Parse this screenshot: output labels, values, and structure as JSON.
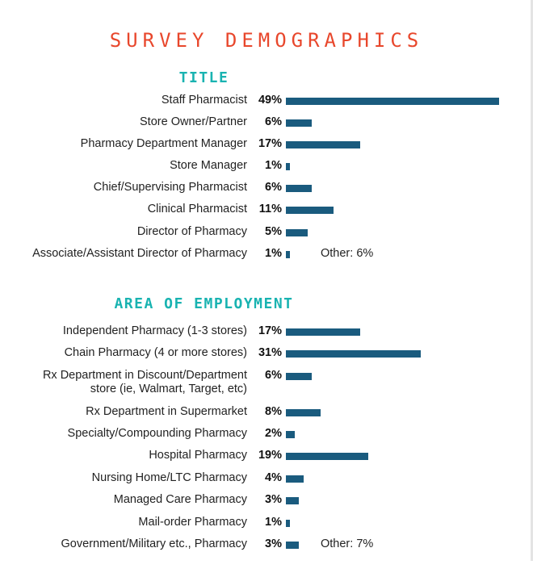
{
  "page": {
    "title": "SURVEY DEMOGRAPHICS"
  },
  "colors": {
    "title": "#e8472c",
    "section": "#19b3b1",
    "bar": "#1a5b7e"
  },
  "chart_data": [
    {
      "type": "bar",
      "orientation": "horizontal",
      "title": "TITLE",
      "categories": [
        "Staff Pharmacist",
        "Store Owner/Partner",
        "Pharmacy Department Manager",
        "Store Manager",
        "Chief/Supervising Pharmacist",
        "Clinical Pharmacist",
        "Director of Pharmacy",
        "Associate/Assistant Director of Pharmacy"
      ],
      "values": [
        49,
        6,
        17,
        1,
        6,
        11,
        5,
        1
      ],
      "value_labels": [
        "49%",
        "6%",
        "17%",
        "1%",
        "6%",
        "11%",
        "5%",
        "1%"
      ],
      "unit": "%",
      "note": "Other: 6%"
    },
    {
      "type": "bar",
      "orientation": "horizontal",
      "title": "AREA OF EMPLOYMENT",
      "categories": [
        "Independent Pharmacy (1-3 stores)",
        "Chain Pharmacy  (4 or more stores)",
        [
          "Rx Department in Discount/Department",
          "store (ie, Walmart, Target, etc)"
        ],
        "Rx Department in Supermarket",
        "Specialty/Compounding Pharmacy",
        "Hospital Pharmacy",
        "Nursing Home/LTC Pharmacy",
        "Managed Care Pharmacy",
        "Mail-order Pharmacy",
        "Government/Military etc., Pharmacy"
      ],
      "values": [
        17,
        31,
        6,
        8,
        2,
        19,
        4,
        3,
        1,
        3
      ],
      "value_labels": [
        "17%",
        "31%",
        "6%",
        "8%",
        "2%",
        "19%",
        "4%",
        "3%",
        "1%",
        "3%"
      ],
      "unit": "%",
      "note": "Other: 7%"
    }
  ]
}
